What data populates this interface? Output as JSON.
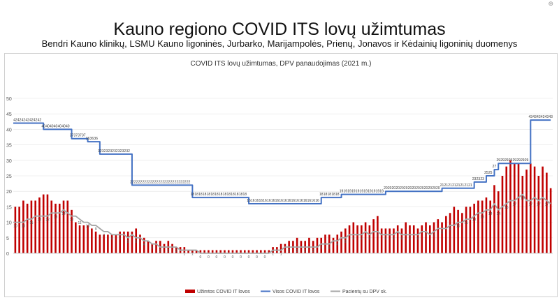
{
  "page": {
    "title": "Kauno regiono COVID ITS lovų užimtumas",
    "subtitle": "Bendri Kauno klinikų, LSMU Kauno ligoninės, Jurbarko, Marijampolės, Prienų, Jonavos ir Kėdainių ligoninių duomenys",
    "corner_mark": "⊕"
  },
  "chart_data": {
    "type": "bar",
    "title": "COVID ITS lovų užimtumas, DPV panaudojimas (2021 m.)",
    "xlabel": "",
    "ylabel": "",
    "ylim": [
      0,
      50
    ],
    "yticks": [
      0,
      5,
      10,
      15,
      20,
      25,
      30,
      35,
      40,
      45,
      50
    ],
    "grid": true,
    "legend_position": "bottom",
    "colors": {
      "occupied": "#c00000",
      "total": "#4472c4",
      "dpv": "#a6a6a6"
    },
    "series": [
      {
        "name": "Užimtos COVID IT lovos",
        "kind": "bar",
        "values": [
          15,
          15,
          17,
          16,
          17,
          17,
          18,
          19,
          19,
          17,
          16,
          16,
          17,
          17,
          14,
          10,
          9,
          9,
          9,
          8,
          7,
          6,
          6,
          6,
          6,
          6,
          7,
          7,
          7,
          7,
          8,
          6,
          5,
          4,
          3,
          4,
          4,
          3,
          4,
          3,
          2,
          2,
          2,
          1,
          1,
          1,
          1,
          1,
          1,
          1,
          1,
          1,
          1,
          1,
          1,
          1,
          1,
          1,
          1,
          1,
          1,
          1,
          1,
          1,
          2,
          2,
          3,
          3,
          4,
          4,
          5,
          4,
          4,
          5,
          4,
          5,
          5,
          6,
          6,
          5,
          6,
          7,
          8,
          9,
          10,
          9,
          9,
          10,
          9,
          11,
          12,
          8,
          8,
          8,
          8,
          9,
          8,
          10,
          9,
          9,
          8,
          9,
          10,
          9,
          10,
          11,
          10,
          12,
          13,
          15,
          14,
          13,
          15,
          15,
          16,
          17,
          17,
          18,
          17,
          22,
          20,
          25,
          28,
          30,
          29,
          29,
          25,
          27,
          29,
          28,
          25,
          28,
          26,
          21
        ]
      },
      {
        "name": "Visos COVID IT lovos",
        "kind": "line",
        "values": [
          42,
          42,
          42,
          42,
          42,
          42,
          42,
          40,
          40,
          40,
          40,
          40,
          40,
          40,
          37,
          37,
          37,
          37,
          36,
          36,
          36,
          32,
          32,
          32,
          32,
          32,
          32,
          32,
          32,
          22,
          22,
          22,
          22,
          22,
          22,
          22,
          22,
          22,
          22,
          22,
          22,
          22,
          22,
          22,
          18,
          18,
          18,
          18,
          18,
          18,
          18,
          18,
          18,
          18,
          18,
          18,
          18,
          18,
          16,
          16,
          16,
          16,
          16,
          16,
          16,
          16,
          16,
          16,
          16,
          16,
          16,
          16,
          16,
          16,
          16,
          16,
          18,
          18,
          18,
          18,
          18,
          19,
          19,
          19,
          19,
          19,
          19,
          19,
          19,
          19,
          19,
          19,
          20,
          20,
          20,
          20,
          20,
          20,
          20,
          20,
          20,
          20,
          20,
          20,
          20,
          20,
          21,
          21,
          21,
          21,
          21,
          21,
          21,
          21,
          23,
          23,
          23,
          25,
          25,
          27,
          29,
          29,
          29,
          29,
          29,
          29,
          29,
          29,
          43,
          43,
          43,
          43,
          43,
          43
        ]
      },
      {
        "name": "Pacientų su DPV sk.",
        "kind": "line",
        "values": [
          10,
          10,
          10,
          11,
          11,
          12,
          12,
          12,
          12,
          13,
          13,
          13,
          14,
          13,
          12,
          12,
          11,
          10,
          10,
          9,
          9,
          8,
          7,
          7,
          6,
          6,
          6,
          6,
          5,
          6,
          5,
          5,
          4,
          4,
          3,
          3,
          2,
          2,
          2,
          2,
          2,
          1,
          1,
          1,
          1,
          1,
          0,
          0,
          0,
          0,
          0,
          0,
          0,
          0,
          0,
          0,
          0,
          0,
          0,
          0,
          0,
          0,
          0,
          0,
          1,
          1,
          1,
          2,
          2,
          2,
          2,
          2,
          2,
          2,
          2,
          2,
          3,
          3,
          3,
          4,
          4,
          5,
          5,
          6,
          6,
          6,
          6,
          7,
          6,
          7,
          7,
          6,
          6,
          6,
          6,
          7,
          6,
          6,
          6,
          6,
          6,
          7,
          7,
          6,
          7,
          8,
          8,
          8,
          9,
          9,
          10,
          10,
          11,
          11,
          12,
          13,
          13,
          14,
          14,
          16,
          14,
          15,
          16,
          17,
          17,
          18,
          19,
          17,
          17,
          18,
          17,
          18,
          17,
          16
        ]
      }
    ],
    "annotations": []
  }
}
